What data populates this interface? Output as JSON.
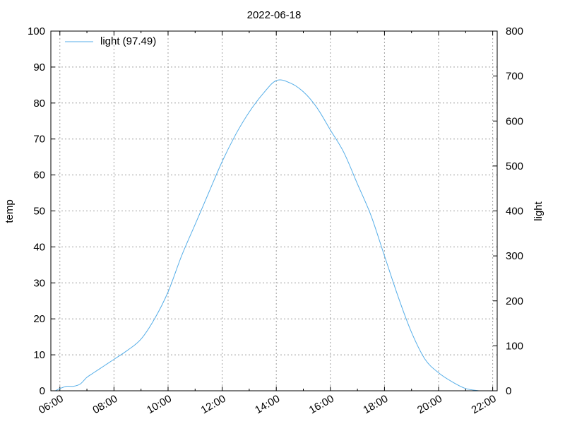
{
  "chart_data": {
    "type": "line",
    "title": "2022-06-18",
    "ylabel": "temp",
    "y2label": "light",
    "ylim": [
      0,
      100
    ],
    "y2lim": [
      0,
      800
    ],
    "xlim": [
      "05:40",
      "22:10"
    ],
    "yticks": [
      0,
      10,
      20,
      30,
      40,
      50,
      60,
      70,
      80,
      90,
      100
    ],
    "y2ticks": [
      0,
      100,
      200,
      300,
      400,
      500,
      600,
      700,
      800
    ],
    "xticks": [
      "06:00",
      "08:00",
      "10:00",
      "12:00",
      "14:00",
      "16:00",
      "18:00",
      "20:00",
      "22:00"
    ],
    "grid": true,
    "legend_position": "top-left",
    "series": [
      {
        "name": "light (97.49)",
        "axis": "right",
        "color": "#56aee8",
        "x": [
          "05:50",
          "06:00",
          "06:15",
          "06:30",
          "06:45",
          "07:00",
          "07:15",
          "07:30",
          "07:45",
          "08:00",
          "08:30",
          "09:00",
          "09:30",
          "10:00",
          "10:30",
          "11:00",
          "11:30",
          "12:00",
          "12:30",
          "13:00",
          "13:30",
          "14:00",
          "14:30",
          "15:00",
          "15:30",
          "16:00",
          "16:30",
          "17:00",
          "17:30",
          "18:00",
          "18:30",
          "19:00",
          "19:30",
          "20:00",
          "20:30",
          "21:00",
          "21:30"
        ],
        "values": [
          0,
          5,
          10,
          10,
          15,
          30,
          40,
          50,
          60,
          70,
          90,
          115,
          160,
          220,
          300,
          370,
          440,
          510,
          570,
          620,
          660,
          690,
          685,
          665,
          630,
          580,
          530,
          460,
          390,
          300,
          210,
          130,
          70,
          40,
          20,
          5,
          0
        ]
      }
    ]
  }
}
